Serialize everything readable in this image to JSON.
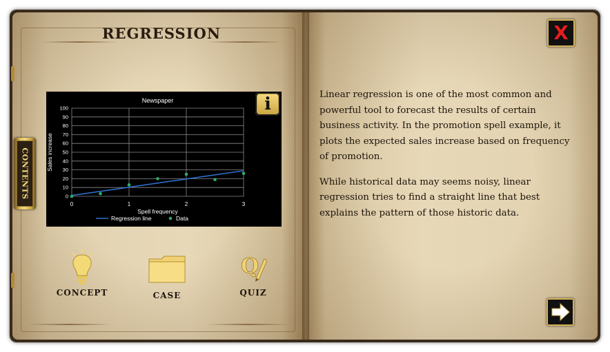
{
  "left_page": {
    "title": "REGRESSION",
    "contents_tab_label": "CONTENTS",
    "info_button_label": "i",
    "nav": [
      {
        "label": "CONCEPT",
        "icon": "lightbulb-icon"
      },
      {
        "label": "CASE",
        "icon": "folder-icon"
      },
      {
        "label": "QUIZ",
        "icon": "quiz-icon"
      }
    ]
  },
  "right_page": {
    "close_button_label": "X",
    "next_icon": "arrow-right-icon",
    "paragraphs": [
      "Linear regression is one of the most common and powerful tool to forecast the results of certain business activity. In the promotion spell example, it plots the expected sales increase based on frequency of promotion.",
      "While historical data may seems noisy, linear regression tries to find a straight line that best explains the pattern of those historic data."
    ]
  },
  "colors": {
    "accent_gold": "#d4b25a",
    "close_red": "#e21e1e",
    "regression_line": "#2f6fce",
    "data_points": "#2fae6a"
  },
  "chart_data": {
    "type": "scatter",
    "title": "Newspaper",
    "xlabel": "Spell frequency",
    "ylabel": "Sales increase",
    "xlim": [
      0,
      3
    ],
    "ylim": [
      0,
      100
    ],
    "x_ticks": [
      "0",
      "1",
      "2",
      "3"
    ],
    "y_ticks": [
      "0",
      "10",
      "20",
      "30",
      "40",
      "50",
      "60",
      "70",
      "80",
      "90",
      "100"
    ],
    "grid": true,
    "legend_position": "bottom",
    "series": [
      {
        "name": "Regression line",
        "kind": "line",
        "x": [
          0,
          3
        ],
        "y": [
          1,
          29
        ]
      },
      {
        "name": "Data",
        "kind": "scatter",
        "x": [
          0,
          0.5,
          1,
          1.5,
          2,
          2.5,
          3
        ],
        "y": [
          0,
          3,
          13,
          20,
          25,
          19,
          26
        ]
      }
    ]
  }
}
